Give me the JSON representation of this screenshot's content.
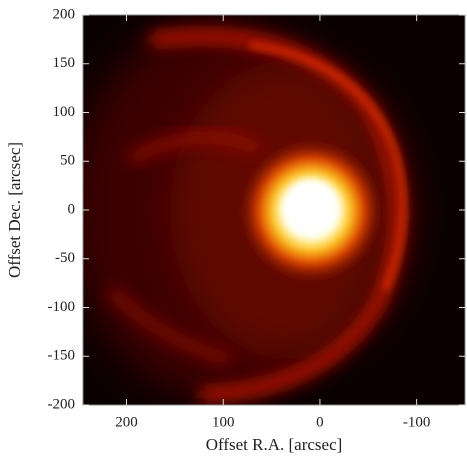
{
  "chart_data": {
    "type": "image",
    "xlabel": "Offset R.A. [arcsec]",
    "ylabel": "Offset Dec. [arcsec]",
    "xlim": [
      245,
      -150
    ],
    "ylim": [
      -200,
      200
    ],
    "xticks": [
      200,
      100,
      0,
      -100
    ],
    "yticks": [
      200,
      150,
      100,
      50,
      0,
      -50,
      -100,
      -150,
      -200
    ]
  }
}
